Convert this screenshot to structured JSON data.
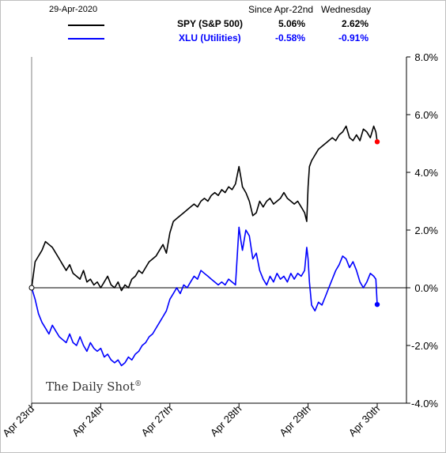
{
  "header": {
    "date": "29-Apr-2020",
    "col1": "Since Apr-22nd",
    "col2": "Wednesday"
  },
  "colors": {
    "spy": "#000000",
    "xlu": "#0000ff",
    "spy_end": "#ff0000",
    "xlu_end": "#0000ff"
  },
  "watermark": "The Daily Shot",
  "watermark_mark": "®",
  "chart_data": {
    "type": "line",
    "y_axis_side": "right",
    "ylim": [
      -4.0,
      8.0
    ],
    "yticks": [
      "8.0%",
      "6.0%",
      "4.0%",
      "2.0%",
      "0.0%",
      "-2.0%",
      "-4.0%"
    ],
    "xticks": [
      "Apr 23rd",
      "Apr 24th",
      "Apr 27th",
      "Apr 28th",
      "Apr 29th",
      "Apr 30th"
    ],
    "grid": false,
    "legend_position": "top",
    "series": [
      {
        "name": "SPY (S&P 500)",
        "since": "5.06%",
        "wednesday": "2.62%",
        "points": [
          [
            0.0,
            0.0
          ],
          [
            0.05,
            0.9
          ],
          [
            0.1,
            1.1
          ],
          [
            0.15,
            1.3
          ],
          [
            0.2,
            1.6
          ],
          [
            0.25,
            1.5
          ],
          [
            0.3,
            1.4
          ],
          [
            0.35,
            1.2
          ],
          [
            0.4,
            1.0
          ],
          [
            0.45,
            0.8
          ],
          [
            0.5,
            0.6
          ],
          [
            0.55,
            0.8
          ],
          [
            0.6,
            0.5
          ],
          [
            0.65,
            0.4
          ],
          [
            0.7,
            0.3
          ],
          [
            0.75,
            0.6
          ],
          [
            0.8,
            0.2
          ],
          [
            0.85,
            0.3
          ],
          [
            0.9,
            0.1
          ],
          [
            0.95,
            0.2
          ],
          [
            1.0,
            0.0
          ],
          [
            1.05,
            0.2
          ],
          [
            1.1,
            0.4
          ],
          [
            1.15,
            0.1
          ],
          [
            1.2,
            0.0
          ],
          [
            1.25,
            0.2
          ],
          [
            1.3,
            -0.1
          ],
          [
            1.35,
            0.1
          ],
          [
            1.4,
            0.0
          ],
          [
            1.45,
            0.3
          ],
          [
            1.5,
            0.4
          ],
          [
            1.55,
            0.6
          ],
          [
            1.6,
            0.5
          ],
          [
            1.65,
            0.7
          ],
          [
            1.7,
            0.9
          ],
          [
            1.75,
            1.0
          ],
          [
            1.8,
            1.1
          ],
          [
            1.85,
            1.3
          ],
          [
            1.9,
            1.5
          ],
          [
            1.95,
            1.2
          ],
          [
            2.0,
            1.9
          ],
          [
            2.05,
            2.3
          ],
          [
            2.1,
            2.4
          ],
          [
            2.15,
            2.5
          ],
          [
            2.2,
            2.6
          ],
          [
            2.25,
            2.7
          ],
          [
            2.3,
            2.8
          ],
          [
            2.35,
            2.9
          ],
          [
            2.4,
            2.8
          ],
          [
            2.45,
            3.0
          ],
          [
            2.5,
            3.1
          ],
          [
            2.55,
            3.0
          ],
          [
            2.6,
            3.2
          ],
          [
            2.65,
            3.3
          ],
          [
            2.7,
            3.2
          ],
          [
            2.75,
            3.4
          ],
          [
            2.8,
            3.3
          ],
          [
            2.85,
            3.5
          ],
          [
            2.9,
            3.4
          ],
          [
            2.95,
            3.6
          ],
          [
            3.0,
            4.2
          ],
          [
            3.03,
            3.8
          ],
          [
            3.05,
            3.5
          ],
          [
            3.1,
            3.3
          ],
          [
            3.15,
            3.0
          ],
          [
            3.2,
            2.5
          ],
          [
            3.25,
            2.6
          ],
          [
            3.3,
            3.0
          ],
          [
            3.35,
            2.8
          ],
          [
            3.4,
            3.0
          ],
          [
            3.45,
            3.1
          ],
          [
            3.5,
            2.9
          ],
          [
            3.55,
            3.0
          ],
          [
            3.6,
            3.1
          ],
          [
            3.65,
            3.3
          ],
          [
            3.7,
            3.1
          ],
          [
            3.75,
            3.0
          ],
          [
            3.8,
            2.9
          ],
          [
            3.85,
            3.0
          ],
          [
            3.9,
            2.8
          ],
          [
            3.95,
            2.6
          ],
          [
            3.98,
            2.3
          ],
          [
            4.0,
            3.5
          ],
          [
            4.02,
            4.2
          ],
          [
            4.05,
            4.4
          ],
          [
            4.1,
            4.6
          ],
          [
            4.15,
            4.8
          ],
          [
            4.2,
            4.9
          ],
          [
            4.25,
            5.0
          ],
          [
            4.3,
            5.1
          ],
          [
            4.35,
            5.2
          ],
          [
            4.4,
            5.1
          ],
          [
            4.45,
            5.3
          ],
          [
            4.5,
            5.4
          ],
          [
            4.55,
            5.6
          ],
          [
            4.6,
            5.2
          ],
          [
            4.65,
            5.1
          ],
          [
            4.7,
            5.3
          ],
          [
            4.75,
            5.1
          ],
          [
            4.8,
            5.5
          ],
          [
            4.85,
            5.4
          ],
          [
            4.9,
            5.2
          ],
          [
            4.95,
            5.6
          ],
          [
            4.98,
            5.4
          ],
          [
            5.0,
            5.06
          ]
        ]
      },
      {
        "name": "XLU (Utilities)",
        "since": "-0.58%",
        "wednesday": "-0.91%",
        "points": [
          [
            0.0,
            0.0
          ],
          [
            0.05,
            -0.4
          ],
          [
            0.1,
            -0.9
          ],
          [
            0.15,
            -1.2
          ],
          [
            0.2,
            -1.4
          ],
          [
            0.25,
            -1.6
          ],
          [
            0.3,
            -1.3
          ],
          [
            0.35,
            -1.5
          ],
          [
            0.4,
            -1.7
          ],
          [
            0.45,
            -1.8
          ],
          [
            0.5,
            -1.9
          ],
          [
            0.55,
            -1.6
          ],
          [
            0.6,
            -1.9
          ],
          [
            0.65,
            -2.0
          ],
          [
            0.7,
            -1.7
          ],
          [
            0.75,
            -2.0
          ],
          [
            0.8,
            -2.2
          ],
          [
            0.85,
            -1.9
          ],
          [
            0.9,
            -2.1
          ],
          [
            0.95,
            -2.2
          ],
          [
            1.0,
            -2.1
          ],
          [
            1.05,
            -2.4
          ],
          [
            1.1,
            -2.3
          ],
          [
            1.15,
            -2.5
          ],
          [
            1.2,
            -2.6
          ],
          [
            1.25,
            -2.5
          ],
          [
            1.3,
            -2.7
          ],
          [
            1.35,
            -2.6
          ],
          [
            1.4,
            -2.4
          ],
          [
            1.45,
            -2.5
          ],
          [
            1.5,
            -2.3
          ],
          [
            1.55,
            -2.2
          ],
          [
            1.6,
            -2.0
          ],
          [
            1.65,
            -1.9
          ],
          [
            1.7,
            -1.7
          ],
          [
            1.75,
            -1.6
          ],
          [
            1.8,
            -1.4
          ],
          [
            1.85,
            -1.2
          ],
          [
            1.9,
            -1.0
          ],
          [
            1.95,
            -0.8
          ],
          [
            2.0,
            -0.4
          ],
          [
            2.05,
            -0.2
          ],
          [
            2.1,
            0.0
          ],
          [
            2.15,
            -0.2
          ],
          [
            2.2,
            0.1
          ],
          [
            2.25,
            0.0
          ],
          [
            2.3,
            0.2
          ],
          [
            2.35,
            0.4
          ],
          [
            2.4,
            0.3
          ],
          [
            2.45,
            0.6
          ],
          [
            2.5,
            0.5
          ],
          [
            2.55,
            0.4
          ],
          [
            2.6,
            0.3
          ],
          [
            2.65,
            0.2
          ],
          [
            2.7,
            0.1
          ],
          [
            2.75,
            0.2
          ],
          [
            2.8,
            0.1
          ],
          [
            2.85,
            0.3
          ],
          [
            2.9,
            0.2
          ],
          [
            2.95,
            0.1
          ],
          [
            3.0,
            2.1
          ],
          [
            3.03,
            1.6
          ],
          [
            3.05,
            1.3
          ],
          [
            3.1,
            2.0
          ],
          [
            3.15,
            1.8
          ],
          [
            3.2,
            1.0
          ],
          [
            3.25,
            1.2
          ],
          [
            3.3,
            0.6
          ],
          [
            3.35,
            0.3
          ],
          [
            3.4,
            0.1
          ],
          [
            3.45,
            0.4
          ],
          [
            3.5,
            0.2
          ],
          [
            3.55,
            0.5
          ],
          [
            3.6,
            0.3
          ],
          [
            3.65,
            0.4
          ],
          [
            3.7,
            0.2
          ],
          [
            3.75,
            0.5
          ],
          [
            3.8,
            0.3
          ],
          [
            3.85,
            0.5
          ],
          [
            3.9,
            0.4
          ],
          [
            3.95,
            0.6
          ],
          [
            3.98,
            1.4
          ],
          [
            4.0,
            1.0
          ],
          [
            4.02,
            0.2
          ],
          [
            4.05,
            -0.6
          ],
          [
            4.1,
            -0.8
          ],
          [
            4.15,
            -0.5
          ],
          [
            4.2,
            -0.6
          ],
          [
            4.25,
            -0.3
          ],
          [
            4.3,
            0.0
          ],
          [
            4.35,
            0.3
          ],
          [
            4.4,
            0.6
          ],
          [
            4.45,
            0.8
          ],
          [
            4.5,
            1.1
          ],
          [
            4.55,
            1.0
          ],
          [
            4.6,
            0.7
          ],
          [
            4.65,
            0.9
          ],
          [
            4.7,
            0.6
          ],
          [
            4.75,
            0.2
          ],
          [
            4.8,
            0.0
          ],
          [
            4.85,
            0.2
          ],
          [
            4.9,
            0.5
          ],
          [
            4.95,
            0.4
          ],
          [
            4.98,
            0.3
          ],
          [
            5.0,
            -0.58
          ]
        ]
      }
    ]
  }
}
